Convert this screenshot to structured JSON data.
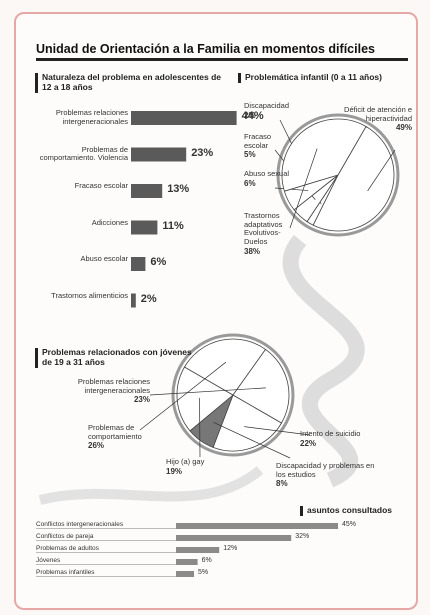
{
  "title": "Unidad de Orientación a la Familia en momentos difíciles",
  "chart_data": [
    {
      "type": "hbar",
      "title": "Naturaleza del problema en adolescentes de 12 a 18 años",
      "categories": [
        "Problemas relaciones intergeneracionales",
        "Problemas de comportamiento. Violencia",
        "Fracaso escolar",
        "Adicciones",
        "Abuso escolar",
        "Trastornos alimenticios"
      ],
      "values": [
        44,
        23,
        13,
        11,
        6,
        2
      ],
      "value_labels": [
        "44%",
        "23%",
        "13%",
        "11%",
        "6%",
        "2%"
      ],
      "color": "#5a5a5a"
    },
    {
      "type": "pie",
      "title": "Problemática infantil (0 a 11 años)",
      "categories": [
        "Déficit de atención e hiperactividad",
        "Discapacidad",
        "Fracaso escolar",
        "Abuso sexual",
        "Trastornos adaptativos Evolutivos-Duelos"
      ],
      "values": [
        49,
        2,
        5,
        6,
        38
      ],
      "value_labels": [
        "49%",
        "2%",
        "5%",
        "6%",
        "38%"
      ]
    },
    {
      "type": "pie",
      "title": "Problemas relacionados con jóvenes de 19 a 31 años",
      "categories": [
        "Intento de suicidio",
        "Discapacidad y problemas en los estudios",
        "Hijo (a) gay",
        "Problemas de comportamiento",
        "Problemas relaciones intergeneracionales"
      ],
      "values": [
        22,
        8,
        19,
        26,
        23
      ],
      "value_labels": [
        "22%",
        "8%",
        "19%",
        "26%",
        "23%"
      ]
    },
    {
      "type": "hbar",
      "title": "asuntos consultados",
      "categories": [
        "Conflictos intergeneracionales",
        "Conflictos de pareja",
        "Problemas de adultos",
        "Jóvenes",
        "Problemas infantiles"
      ],
      "values": [
        45,
        32,
        12,
        6,
        5
      ],
      "value_labels": [
        "45%",
        "32%",
        "12%",
        "6%",
        "5%"
      ],
      "color": "#8a8a8a"
    }
  ]
}
